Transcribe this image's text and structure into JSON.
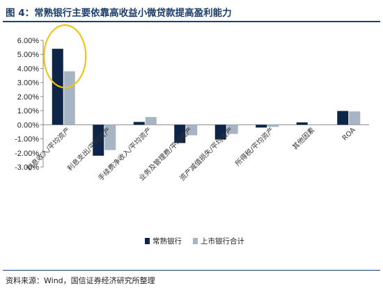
{
  "header": {
    "title": "图 4：常熟银行主要依靠高收益小微贷款提高盈利能力"
  },
  "footer": {
    "source": "资料来源：Wind，国信证券经济研究所整理"
  },
  "chart_data": {
    "type": "bar",
    "title": "",
    "xlabel": "",
    "ylabel": "",
    "ylim": [
      -0.03,
      0.06
    ],
    "ytick_values": [
      0.06,
      0.05,
      0.04,
      0.03,
      0.02,
      0.01,
      0.0,
      -0.01,
      -0.02,
      -0.03
    ],
    "ytick_labels": [
      "6.00%",
      "5.00%",
      "4.00%",
      "3.00%",
      "2.00%",
      "1.00%",
      "0.00%",
      "-1.00%",
      "-2.00%",
      "-3.00%"
    ],
    "categories": [
      "利息收入/平均资产",
      "利息支出/平均资产",
      "手续费净收入/平均资产",
      "业务及管理费/平均资产",
      "资产减值损失/平均资产",
      "所得税/平均资产",
      "其他因素",
      "ROA"
    ],
    "series": [
      {
        "name": "常熟银行",
        "color": "#0f2548",
        "values": [
          0.054,
          -0.022,
          0.002,
          -0.013,
          -0.0105,
          -0.002,
          0.0017,
          0.0098
        ]
      },
      {
        "name": "上市银行合计",
        "color": "#a6b4c4",
        "values": [
          0.038,
          -0.018,
          0.0055,
          -0.0075,
          -0.0065,
          -0.0015,
          0.0,
          0.0095
        ]
      }
    ],
    "legend_position": "bottom-center",
    "grid": false,
    "annotation": {
      "shape": "ellipse",
      "color": "#f0c419",
      "target_category": "利息收入/平均资产"
    }
  }
}
